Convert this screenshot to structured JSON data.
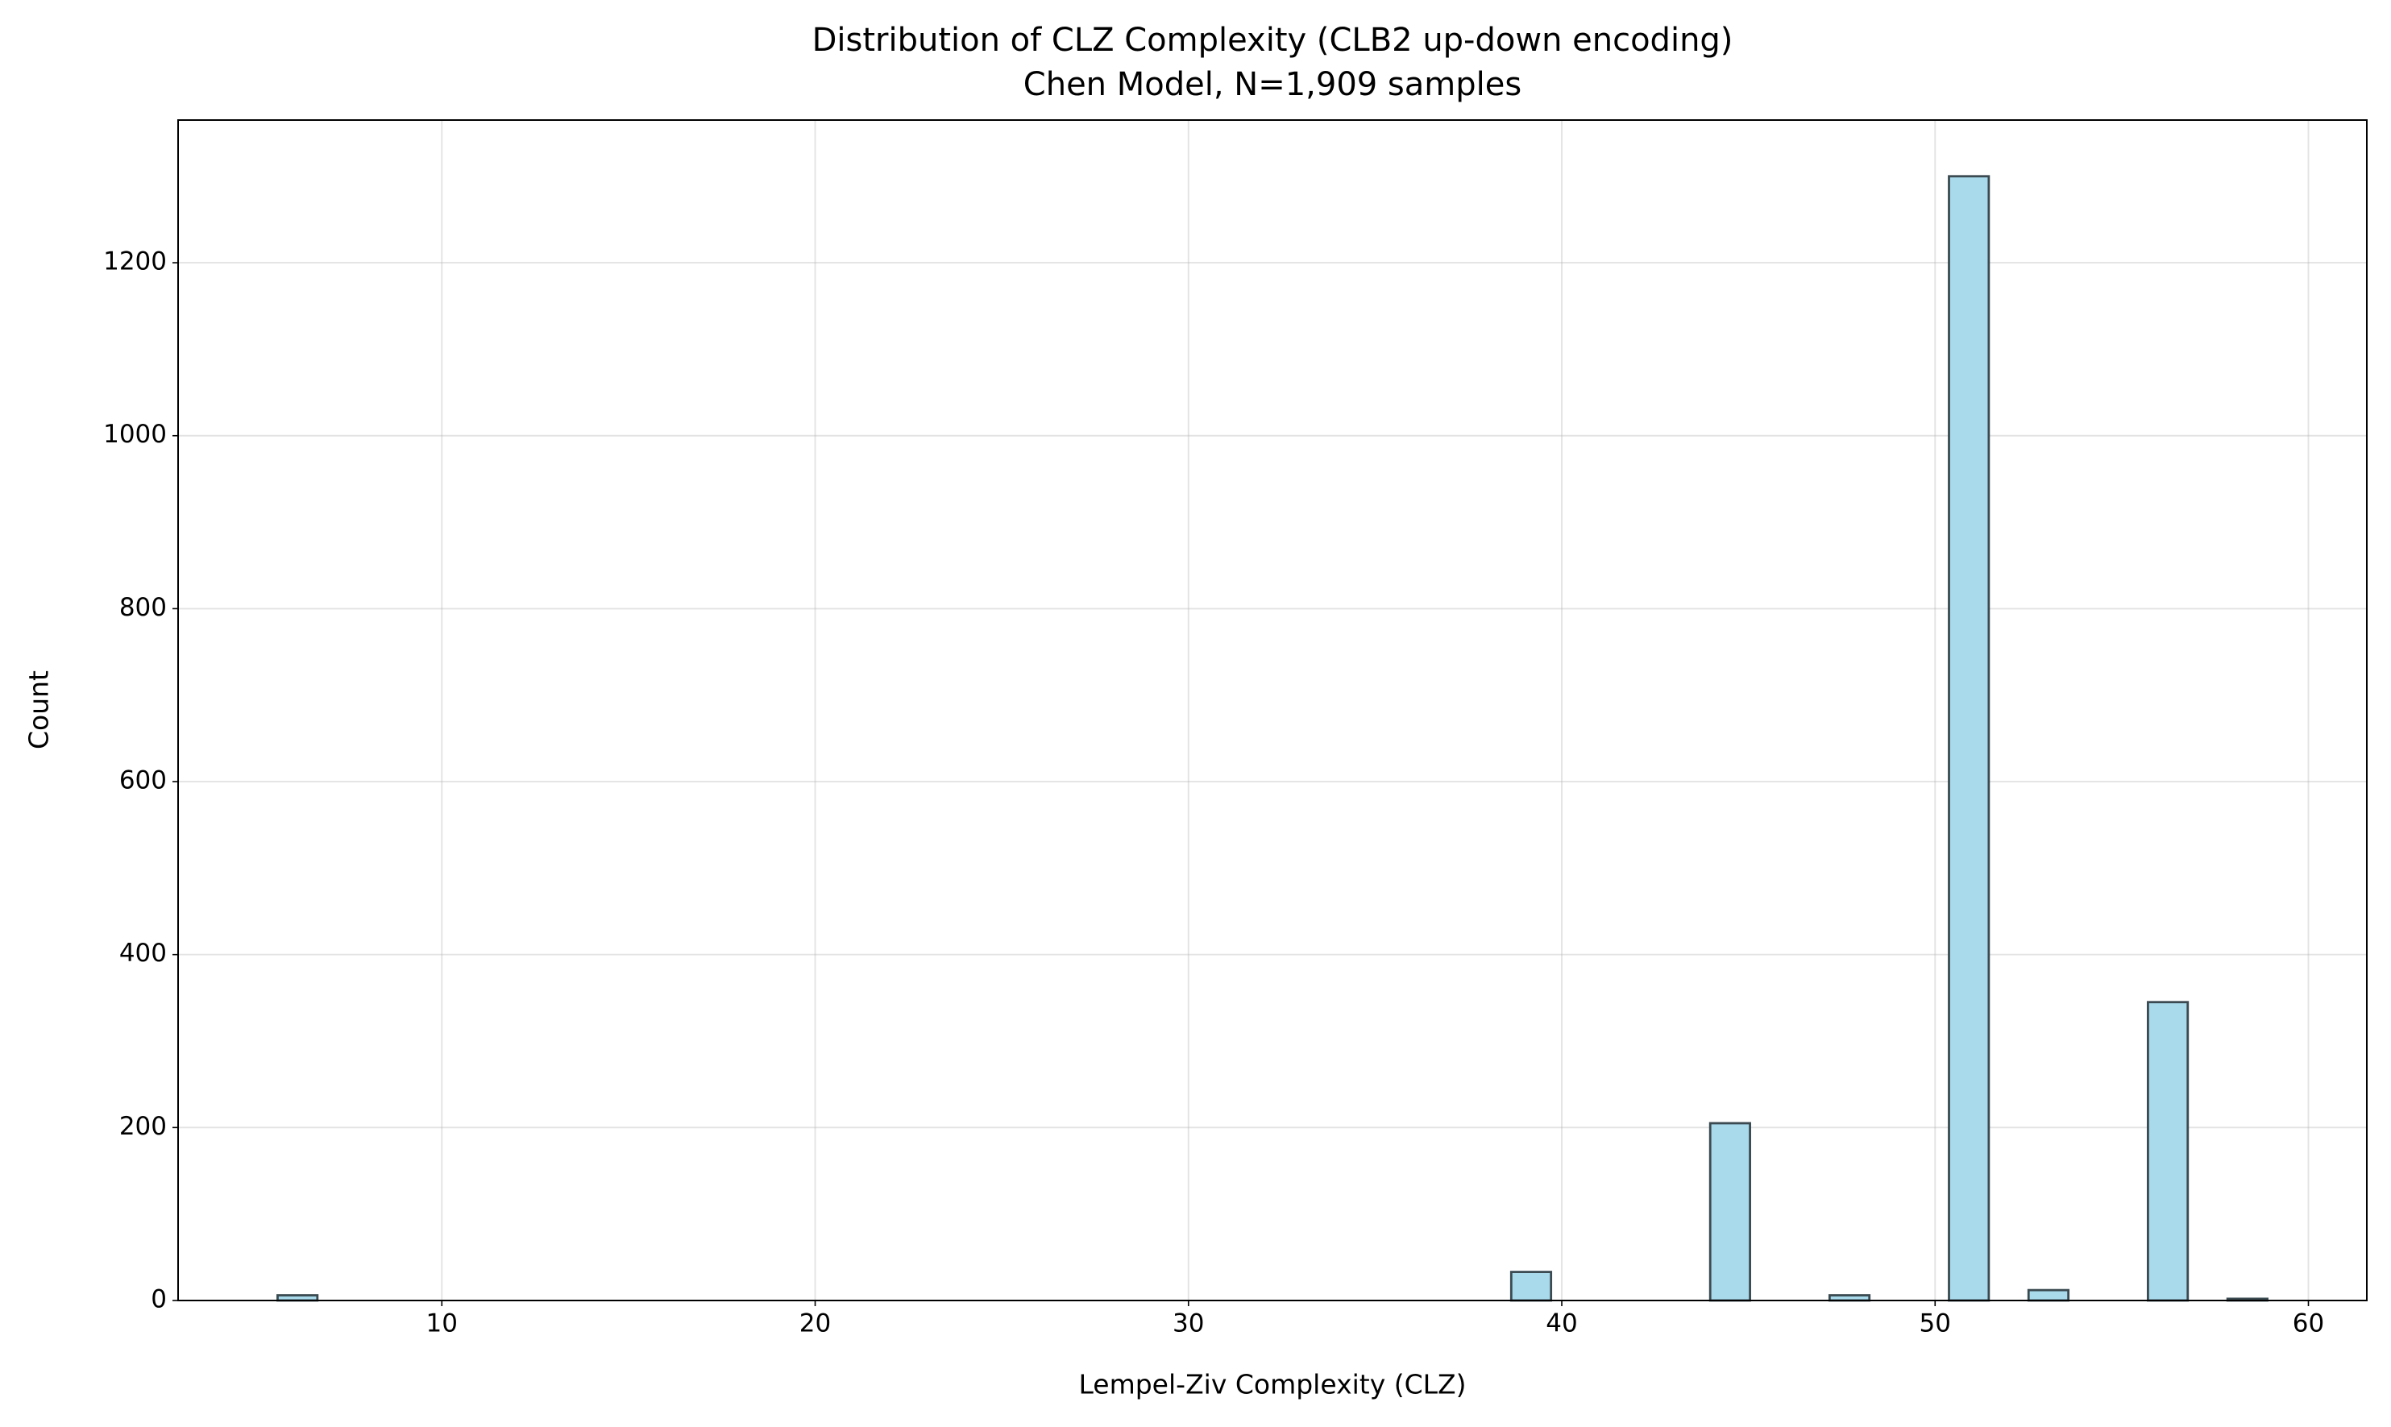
{
  "chart_data": {
    "type": "histogram",
    "title": "Distribution of CLZ Complexity (CLB2 up-down encoding)",
    "subtitle": "Chen Model, N=1,909 samples",
    "xlabel": "Lempel-Ziv Complexity (CLZ)",
    "ylabel": "Count",
    "bins": [
      5.6,
      6.666,
      7.732,
      8.798,
      9.864,
      10.93,
      11.996,
      13.062,
      14.128,
      15.194,
      16.26,
      17.326,
      18.392,
      19.458,
      20.524,
      21.59,
      22.656,
      23.722,
      24.788,
      25.854,
      26.92,
      27.986,
      29.052,
      30.118,
      31.184,
      32.25,
      33.316,
      34.382,
      35.448,
      36.514,
      37.58,
      38.646,
      39.712,
      40.778,
      41.844,
      42.91,
      43.976,
      45.042,
      46.108,
      47.174,
      48.24,
      49.306,
      50.372,
      51.438,
      52.504,
      53.57,
      54.636,
      55.702,
      56.768,
      57.834,
      58.9
    ],
    "values": [
      6,
      0,
      0,
      0,
      0,
      0,
      0,
      0,
      0,
      0,
      0,
      0,
      0,
      0,
      0,
      0,
      0,
      0,
      0,
      0,
      0,
      0,
      0,
      0,
      0,
      0,
      0,
      0,
      0,
      0,
      0,
      33,
      0,
      0,
      0,
      0,
      205,
      0,
      0,
      6,
      0,
      0,
      1300,
      0,
      12,
      0,
      0,
      345,
      0,
      2
    ],
    "color": "#a8daec",
    "edgecolor": "#3a4a50",
    "xlim": [
      2.935,
      61.565
    ],
    "ylim": [
      0,
      1365
    ],
    "xticks": [
      10,
      20,
      30,
      40,
      50,
      60
    ],
    "yticks": [
      0,
      200,
      400,
      600,
      800,
      1000,
      1200
    ],
    "grid": true
  }
}
